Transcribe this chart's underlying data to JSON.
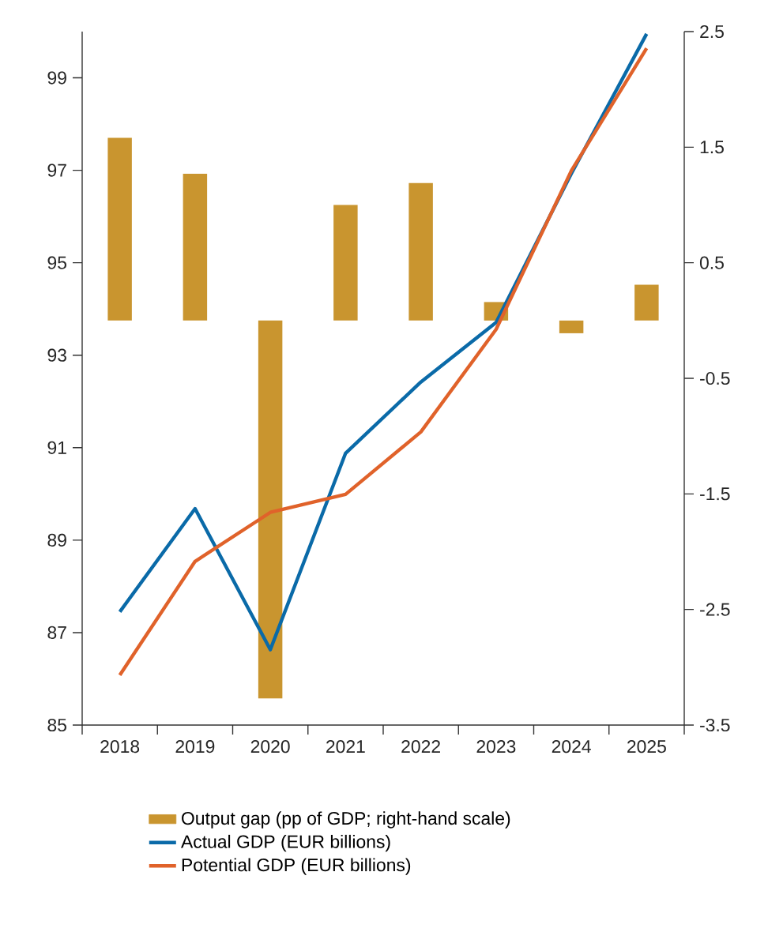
{
  "chart_data": {
    "type": "bar",
    "categories": [
      "2018",
      "2019",
      "2020",
      "2021",
      "2022",
      "2023",
      "2024",
      "2025"
    ],
    "series": [
      {
        "name": "Output gap (pp of GDP; right-hand scale)",
        "axis": "y2",
        "color": "#c9952f",
        "values": [
          1.58,
          1.27,
          -3.27,
          1.0,
          1.19,
          0.16,
          -0.11,
          0.31
        ]
      },
      {
        "name": "Actual GDP (EUR billions)",
        "type": "line",
        "color": "#0a6aa8",
        "values": [
          87.45,
          89.68,
          86.63,
          90.88,
          92.42,
          93.71,
          96.93,
          99.95
        ]
      },
      {
        "name": "Potential GDP (EUR billions)",
        "type": "line",
        "color": "#e0622a",
        "values": [
          86.08,
          88.54,
          89.6,
          89.99,
          91.34,
          93.56,
          96.99,
          99.64
        ]
      }
    ],
    "ylim": [
      85,
      100
    ],
    "yticks": [
      85,
      87,
      89,
      91,
      93,
      95,
      97,
      99
    ],
    "y2lim": [
      -3.5,
      2.5
    ],
    "y2ticks": [
      -3.5,
      -2.5,
      -1.5,
      -0.5,
      0.5,
      1.5,
      2.5
    ],
    "legend": "bottom",
    "marker": "none",
    "line_style": "solid"
  }
}
